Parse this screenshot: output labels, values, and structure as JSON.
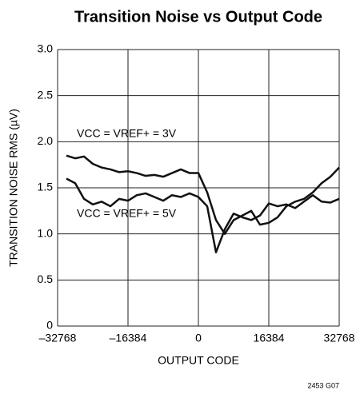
{
  "chart_data": {
    "type": "line",
    "title": "Transition Noise vs Output Code",
    "x_label": "OUTPUT CODE",
    "y_label": "TRANSITION NOISE RMS (µV)",
    "footnote": "2453 G07",
    "x": [
      -30720,
      -28672,
      -26624,
      -24576,
      -22528,
      -20480,
      -18432,
      -16384,
      -14336,
      -12288,
      -10240,
      -8192,
      -6144,
      -4096,
      -2048,
      0,
      2048,
      4096,
      6144,
      8192,
      10240,
      12288,
      14336,
      16384,
      18432,
      20480,
      22528,
      24576,
      26624,
      28672,
      30720,
      32768
    ],
    "series": [
      {
        "name": "VCC = VREF+ = 3V",
        "color": "#111111",
        "values": [
          1.85,
          1.82,
          1.84,
          1.76,
          1.72,
          1.7,
          1.67,
          1.68,
          1.66,
          1.63,
          1.64,
          1.62,
          1.66,
          1.7,
          1.66,
          1.66,
          1.45,
          1.15,
          1.0,
          1.15,
          1.2,
          1.25,
          1.1,
          1.12,
          1.18,
          1.3,
          1.35,
          1.38,
          1.45,
          1.55,
          1.62,
          1.72
        ]
      },
      {
        "name": "VCC = VREF+ = 5V",
        "color": "#111111",
        "values": [
          1.6,
          1.55,
          1.38,
          1.32,
          1.35,
          1.3,
          1.38,
          1.36,
          1.42,
          1.44,
          1.4,
          1.36,
          1.42,
          1.4,
          1.44,
          1.4,
          1.3,
          0.8,
          1.05,
          1.22,
          1.18,
          1.15,
          1.2,
          1.33,
          1.3,
          1.32,
          1.28,
          1.35,
          1.42,
          1.35,
          1.34,
          1.38
        ]
      }
    ],
    "xlim": [
      -32768,
      32768
    ],
    "xticks": [
      {
        "value": -32768,
        "label": "–32768"
      },
      {
        "value": -16384,
        "label": "–16384"
      },
      0,
      16384,
      32768
    ],
    "ylim": [
      0,
      3
    ],
    "yticks": [
      0,
      0.5,
      {
        "value": 1,
        "label": "1.0"
      },
      1.5,
      {
        "value": 2,
        "label": "2.0"
      },
      2.5,
      {
        "value": 3,
        "label": "3.0"
      }
    ],
    "grid": true
  }
}
